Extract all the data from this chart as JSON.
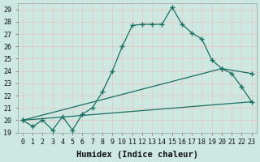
{
  "xlabel": "Humidex (Indice chaleur)",
  "bg_color": "#cce8e0",
  "grid_color": "#b0d8d0",
  "line_color": "#1a6e62",
  "xlim": [
    -0.5,
    23.5
  ],
  "ylim": [
    19,
    29.5
  ],
  "yticks": [
    19,
    20,
    21,
    22,
    23,
    24,
    25,
    26,
    27,
    28,
    29
  ],
  "xticks": [
    0,
    1,
    2,
    3,
    4,
    5,
    6,
    7,
    8,
    9,
    10,
    11,
    12,
    13,
    14,
    15,
    16,
    17,
    18,
    19,
    20,
    21,
    22,
    23
  ],
  "line1_x": [
    0,
    1,
    2,
    3,
    4,
    5,
    6,
    7,
    8,
    9,
    10,
    11,
    12,
    13,
    14,
    15,
    16,
    17,
    18,
    19,
    20,
    21,
    22,
    23
  ],
  "line1_y": [
    20.0,
    19.5,
    20.0,
    19.2,
    20.3,
    19.2,
    20.5,
    21.0,
    22.3,
    24.0,
    26.0,
    27.7,
    27.8,
    27.8,
    27.8,
    29.2,
    27.8,
    27.1,
    26.6,
    24.9,
    24.2,
    23.8,
    22.7,
    21.5
  ],
  "line2_x": [
    0,
    20,
    23
  ],
  "line2_y": [
    20.0,
    24.2,
    23.8
  ],
  "line3_x": [
    0,
    23
  ],
  "line3_y": [
    20.0,
    21.5
  ],
  "font_family": "monospace",
  "tick_fontsize": 6,
  "label_fontsize": 7.5
}
